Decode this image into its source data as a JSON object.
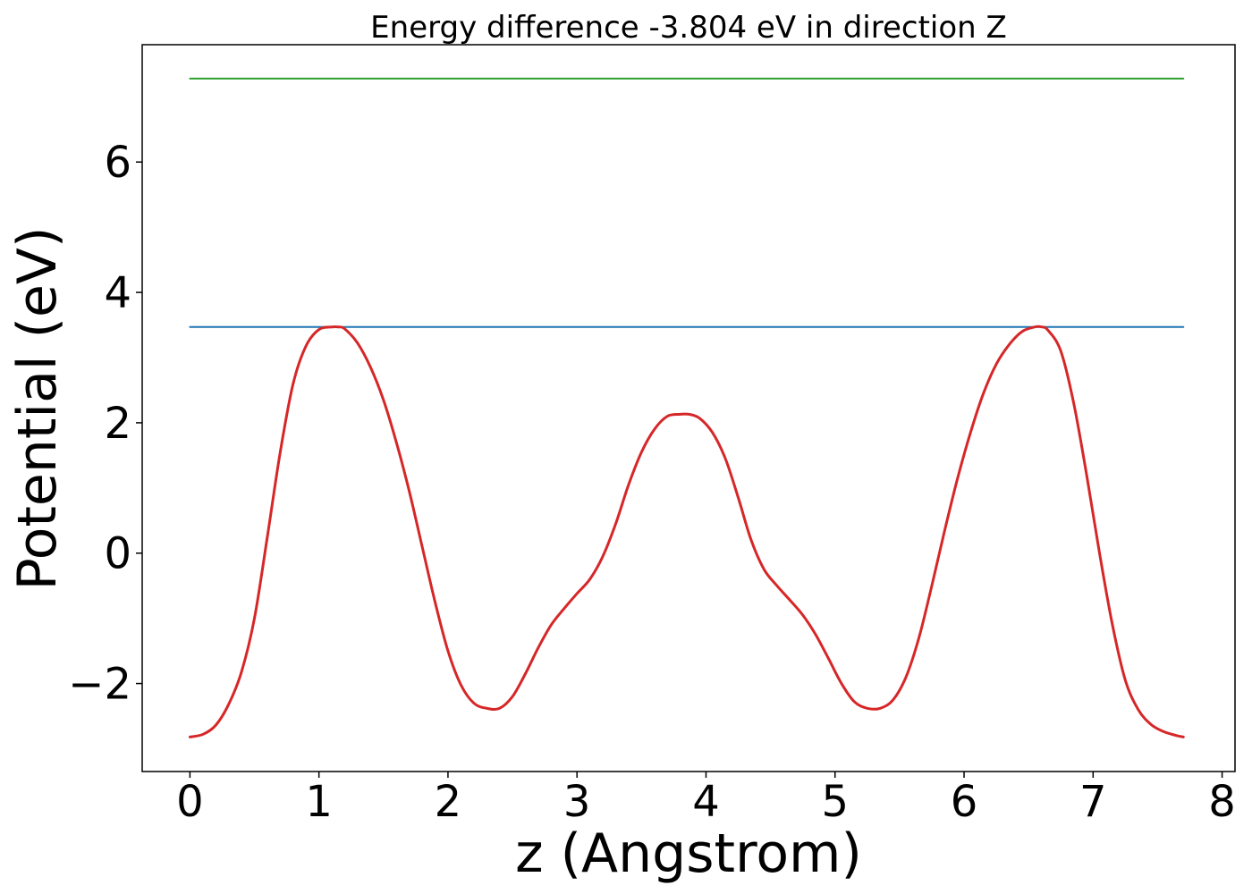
{
  "chart_data": {
    "type": "line",
    "title": "Energy difference -3.804 eV in direction Z",
    "xlabel": "z (Angstrom)",
    "ylabel": "Potential (eV)",
    "xlim": [
      -0.37,
      8.1
    ],
    "ylim": [
      -3.35,
      7.8
    ],
    "xticks": [
      0,
      1,
      2,
      3,
      4,
      5,
      6,
      7,
      8
    ],
    "xtick_labels": [
      "0",
      "1",
      "2",
      "3",
      "4",
      "5",
      "6",
      "7",
      "8"
    ],
    "yticks": [
      -2,
      0,
      2,
      4,
      6
    ],
    "ytick_labels": [
      "−2",
      "0",
      "2",
      "4",
      "6"
    ],
    "grid": false,
    "legend": "none",
    "series": [
      {
        "color": "#2ca02c",
        "style": "flat",
        "x": [
          0,
          7.7
        ],
        "y": [
          7.28,
          7.28
        ]
      },
      {
        "color": "#1f77b4",
        "style": "flat",
        "x": [
          0,
          7.7
        ],
        "y": [
          3.47,
          3.47
        ]
      },
      {
        "color": "#d62728",
        "style": "smooth",
        "x": [
          0.0,
          0.1,
          0.2,
          0.3,
          0.4,
          0.5,
          0.6,
          0.7,
          0.8,
          0.9,
          1.0,
          1.1,
          1.15,
          1.2,
          1.3,
          1.4,
          1.5,
          1.6,
          1.7,
          1.8,
          1.9,
          2.0,
          2.1,
          2.2,
          2.3,
          2.4,
          2.5,
          2.6,
          2.7,
          2.8,
          2.9,
          3.0,
          3.1,
          3.2,
          3.3,
          3.4,
          3.5,
          3.6,
          3.7,
          3.8,
          3.87,
          3.95,
          4.05,
          4.15,
          4.25,
          4.35,
          4.45,
          4.55,
          4.65,
          4.75,
          4.85,
          4.95,
          5.05,
          5.15,
          5.25,
          5.35,
          5.45,
          5.55,
          5.65,
          5.75,
          5.85,
          5.95,
          6.05,
          6.15,
          6.25,
          6.35,
          6.45,
          6.55,
          6.6,
          6.65,
          6.75,
          6.85,
          6.95,
          7.05,
          7.15,
          7.25,
          7.35,
          7.45,
          7.55,
          7.65,
          7.7
        ],
        "y": [
          -2.82,
          -2.78,
          -2.64,
          -2.32,
          -1.82,
          -1.0,
          0.25,
          1.55,
          2.6,
          3.18,
          3.43,
          3.47,
          3.47,
          3.44,
          3.22,
          2.85,
          2.35,
          1.7,
          0.95,
          0.1,
          -0.75,
          -1.5,
          -2.02,
          -2.3,
          -2.38,
          -2.38,
          -2.2,
          -1.85,
          -1.45,
          -1.1,
          -0.85,
          -0.62,
          -0.4,
          -0.05,
          0.45,
          1.05,
          1.55,
          1.9,
          2.1,
          2.13,
          2.13,
          2.07,
          1.85,
          1.45,
          0.85,
          0.2,
          -0.25,
          -0.5,
          -0.72,
          -0.95,
          -1.25,
          -1.62,
          -2.0,
          -2.28,
          -2.38,
          -2.38,
          -2.25,
          -1.9,
          -1.3,
          -0.5,
          0.35,
          1.15,
          1.85,
          2.45,
          2.9,
          3.2,
          3.4,
          3.47,
          3.47,
          3.42,
          3.1,
          2.3,
          1.2,
          0.0,
          -1.1,
          -1.95,
          -2.4,
          -2.63,
          -2.74,
          -2.8,
          -2.82
        ]
      }
    ]
  }
}
